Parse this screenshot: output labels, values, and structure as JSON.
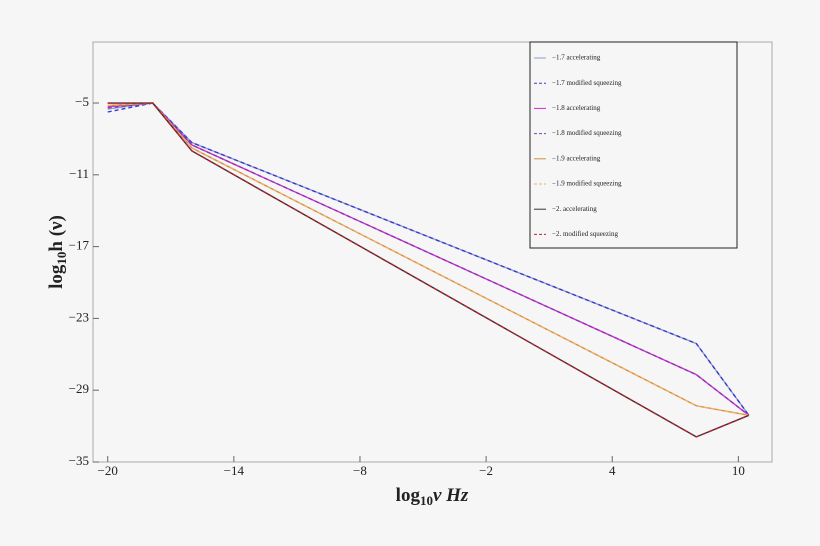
{
  "chart_data": {
    "type": "line",
    "xlabel": [
      "log",
      "10",
      "ν Hz"
    ],
    "ylabel": [
      "log",
      "10",
      "h (ν)"
    ],
    "x": [
      -20,
      -17.86,
      -16,
      8,
      10.5
    ],
    "series": [
      {
        "name": "−1.7 accelerating",
        "color": "#8a9cc8",
        "dash": false,
        "values": [
          -5.5,
          -5,
          -8.3,
          -25.1,
          -31.1
        ]
      },
      {
        "name": "−1.7 modified squeezing",
        "color": "#3a3ad0",
        "dash": true,
        "values": [
          -5.75,
          -5,
          -8.3,
          -25.1,
          -31.1
        ]
      },
      {
        "name": "−1.8 accelerating",
        "color": "#d828d8",
        "dash": false,
        "values": [
          -5.3,
          -5,
          -8.5,
          -27.7,
          -31.1
        ]
      },
      {
        "name": "−1.8 modified squeezing",
        "color": "#8040a8",
        "dash": true,
        "values": [
          -5.4,
          -5,
          -8.5,
          -27.7,
          -31.1
        ]
      },
      {
        "name": "−1.9 accelerating",
        "color": "#d09040",
        "dash": false,
        "values": [
          -5.2,
          -5,
          -8.75,
          -30.3,
          -31.1
        ]
      },
      {
        "name": "−1.9 modified squeezing",
        "color": "#f0b070",
        "dash": true,
        "values": [
          -5.2,
          -5,
          -8.75,
          -30.3,
          -31.1
        ]
      },
      {
        "name": "−2. accelerating",
        "color": "#333333",
        "dash": false,
        "values": [
          -5,
          -5,
          -9,
          -32.9,
          -31.1
        ]
      },
      {
        "name": "−2. modified squeezing",
        "color": "#c02030",
        "dash": true,
        "values": [
          -5,
          -5,
          -9,
          -32.9,
          -31.1
        ]
      }
    ],
    "xlim": [
      -20.7,
      11.6
    ],
    "ylim": [
      -35,
      0.1
    ],
    "xticks": [
      {
        "value": -20,
        "label": "−20"
      },
      {
        "value": -14,
        "label": "−14"
      },
      {
        "value": -8,
        "label": "−8"
      },
      {
        "value": -2,
        "label": "−2"
      },
      4,
      10
    ],
    "yticks": [
      {
        "value": -5,
        "label": "−5"
      },
      {
        "value": -11,
        "label": "−11"
      },
      {
        "value": -17,
        "label": "−17"
      },
      {
        "value": -23,
        "label": "−23"
      },
      {
        "value": -29,
        "label": "−29"
      },
      {
        "value": -35,
        "label": "−35"
      }
    ],
    "legend": "top-right"
  }
}
